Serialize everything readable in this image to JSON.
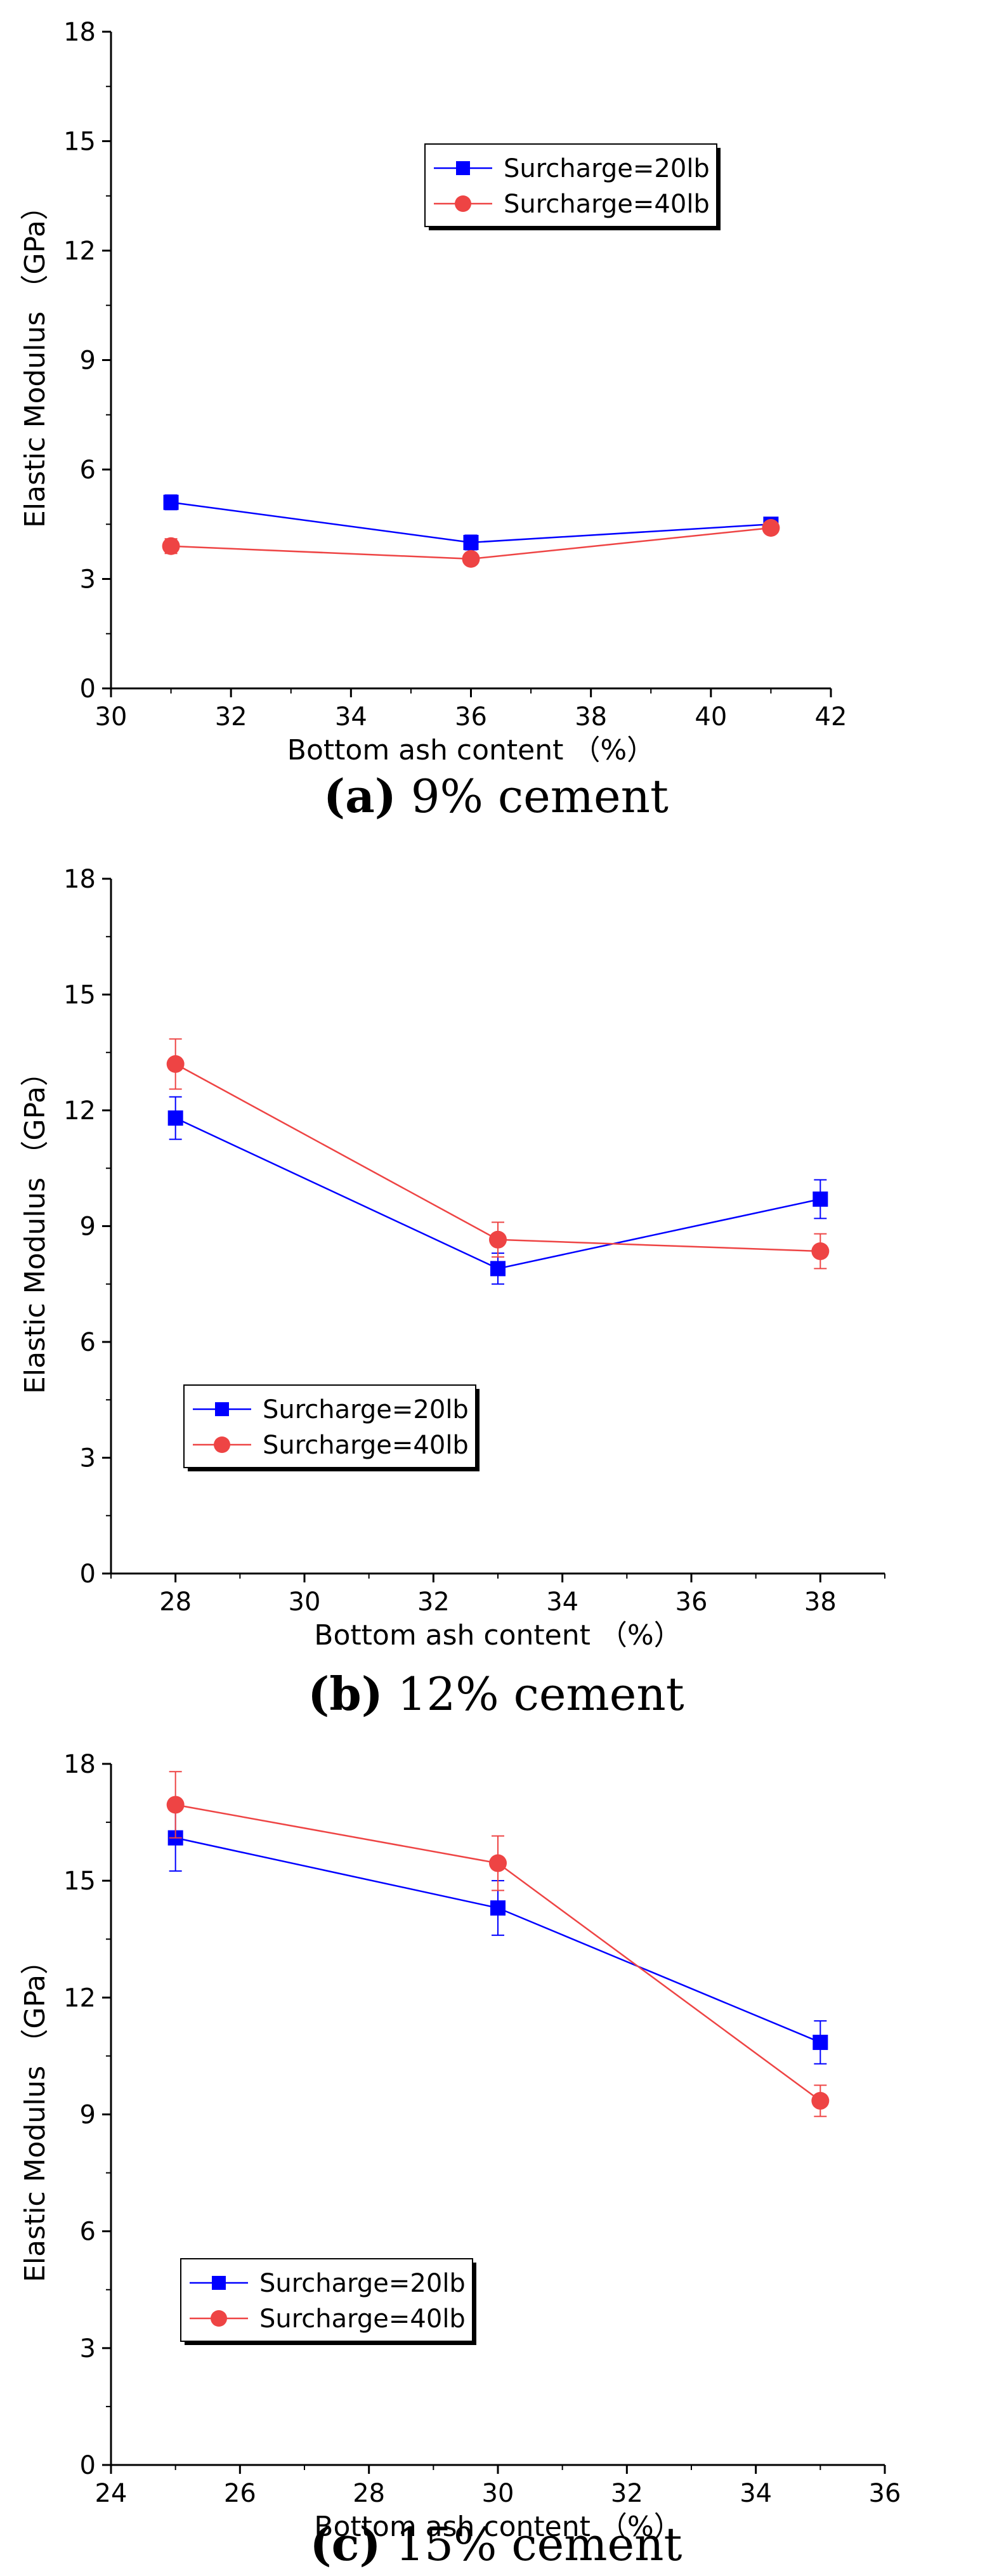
{
  "chart_data": [
    {
      "type": "line",
      "caption_label": "(a)",
      "caption_rest": " 9% cement",
      "xlabel": "Bottom ash content （%）",
      "ylabel": "Elastic Modulus （GPa）",
      "xlim": [
        30,
        42
      ],
      "ylim": [
        0,
        18
      ],
      "xticks": [
        30,
        32,
        34,
        36,
        38,
        40,
        42
      ],
      "yticks": [
        0,
        3,
        6,
        9,
        12,
        15,
        18
      ],
      "legend_position": "top-right",
      "series": [
        {
          "name": "Surcharge=20lb",
          "color": "#0000ff",
          "marker": "square",
          "x": [
            31,
            36,
            41
          ],
          "y": [
            5.1,
            4.0,
            4.5
          ],
          "err": [
            0.2,
            0.2,
            0.15
          ]
        },
        {
          "name": "Surcharge=40lb",
          "color": "#ee4444",
          "marker": "circle",
          "x": [
            31,
            36,
            41
          ],
          "y": [
            3.9,
            3.55,
            4.4
          ],
          "err": [
            0.2,
            0.15,
            0.15
          ]
        }
      ]
    },
    {
      "type": "line",
      "caption_label": "(b)",
      "caption_rest": " 12% cement",
      "xlabel": "Bottom ash content （%）",
      "ylabel": "Elastic Modulus （GPa）",
      "xlim": [
        27,
        39
      ],
      "ylim": [
        0,
        18
      ],
      "xticks": [
        28,
        30,
        32,
        34,
        36,
        38
      ],
      "yticks": [
        0,
        3,
        6,
        9,
        12,
        15,
        18
      ],
      "legend_position": "bottom-left",
      "series": [
        {
          "name": "Surcharge=20lb",
          "color": "#0000ff",
          "marker": "square",
          "x": [
            28,
            33,
            38
          ],
          "y": [
            11.8,
            7.9,
            9.7
          ],
          "err": [
            0.55,
            0.4,
            0.5
          ]
        },
        {
          "name": "Surcharge=40lb",
          "color": "#ee4444",
          "marker": "circle",
          "x": [
            28,
            33,
            38
          ],
          "y": [
            13.2,
            8.65,
            8.35
          ],
          "err": [
            0.65,
            0.45,
            0.45
          ]
        }
      ]
    },
    {
      "type": "line",
      "caption_label": "(c)",
      "caption_rest": " 15% cement",
      "xlabel": "Bottom ash content （%）",
      "ylabel": "Elastic Modulus （GPa）",
      "xlim": [
        24,
        36
      ],
      "ylim": [
        0,
        18
      ],
      "xticks": [
        24,
        26,
        28,
        30,
        32,
        34,
        36
      ],
      "yticks": [
        0,
        3,
        6,
        9,
        12,
        15,
        18
      ],
      "legend_position": "bottom-left",
      "series": [
        {
          "name": "Surcharge=20lb",
          "color": "#0000ff",
          "marker": "square",
          "x": [
            25,
            30,
            35
          ],
          "y": [
            16.1,
            14.3,
            10.85
          ],
          "err": [
            0.85,
            0.7,
            0.55
          ]
        },
        {
          "name": "Surcharge=40lb",
          "color": "#ee4444",
          "marker": "circle",
          "x": [
            25,
            30,
            35
          ],
          "y": [
            16.95,
            15.45,
            9.35
          ],
          "err": [
            0.85,
            0.7,
            0.4
          ]
        }
      ]
    }
  ]
}
